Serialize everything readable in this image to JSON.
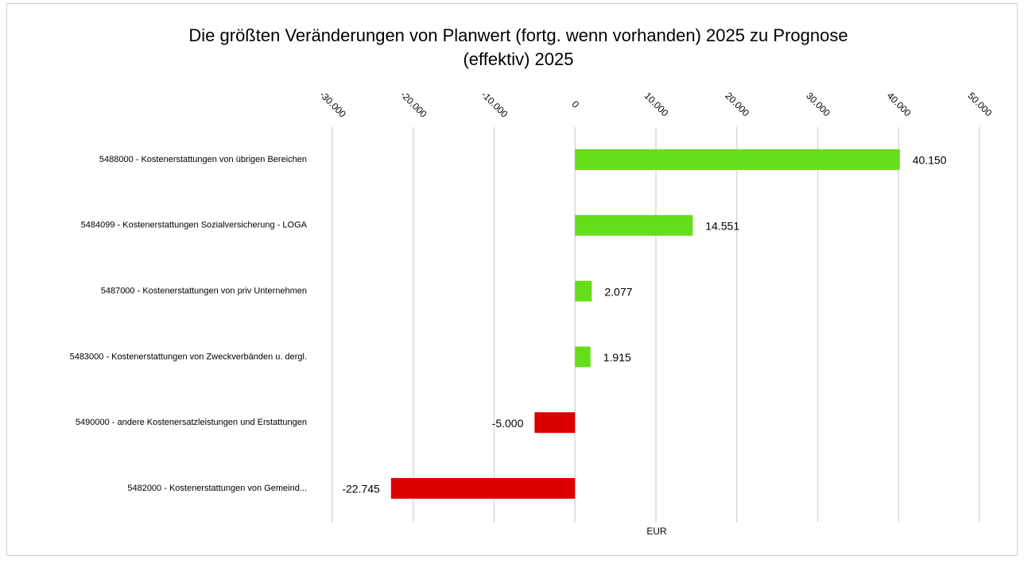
{
  "chart_data": {
    "type": "bar",
    "orientation": "horizontal",
    "title": "Die größten Veränderungen von Planwert (fortg. wenn vorhanden) 2025 zu Prognose (effektiv) 2025",
    "x_label": "EUR",
    "categories": [
      "5488000 - Kostenerstattungen von übrigen Bereichen",
      "5484099 - Kostenerstattungen Sozialversicherung - LOGA",
      "5487000 - Kostenerstattungen von priv Unternehmen",
      "5483000 - Kostenerstattungen von Zweckverbänden u. dergl.",
      "5490000 - andere Kostenersatzleistungen und Erstattungen",
      "5482000 - Kostenerstattungen von Gemeind..."
    ],
    "values": [
      40150,
      14551,
      2077,
      1915,
      -5000,
      -22745
    ],
    "value_labels": [
      "40.150",
      "14.551",
      "2.077",
      "1.915",
      "-5.000",
      "-22.745"
    ],
    "colors": [
      "#66dd1a",
      "#66dd1a",
      "#66dd1a",
      "#66dd1a",
      "#dd0000",
      "#dd0000"
    ],
    "xlim": [
      -30000,
      50000
    ],
    "xticks": [
      {
        "value": -30000,
        "label": "-30.000"
      },
      {
        "value": -20000,
        "label": "-20.000"
      },
      {
        "value": -10000,
        "label": "-10.000"
      },
      0,
      {
        "value": 10000,
        "label": "10.000"
      },
      {
        "value": 20000,
        "label": "20.000"
      },
      {
        "value": 30000,
        "label": "30.000"
      },
      {
        "value": 40000,
        "label": "40.000"
      },
      {
        "value": 50000,
        "label": "50.000"
      }
    ],
    "grid": true
  }
}
